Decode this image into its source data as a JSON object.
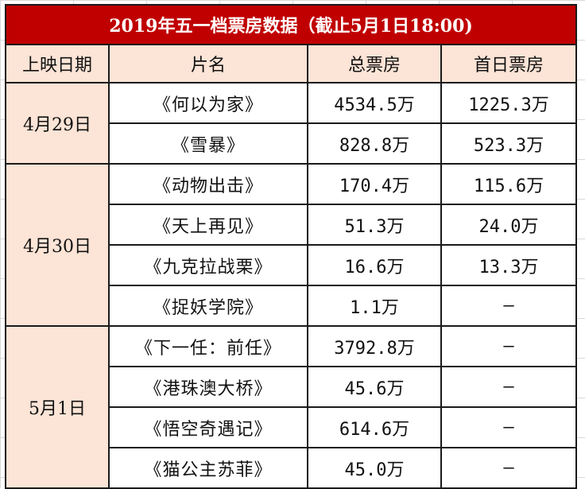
{
  "title": "2019年五一档票房数据（截止5月1日18:00)",
  "headers": {
    "date": "上映日期",
    "movie": "片名",
    "total": "总票房",
    "first_day": "首日票房"
  },
  "groups": [
    {
      "date": "4月29日",
      "rows": [
        {
          "movie": "《何以为家》",
          "total": "4534.5万",
          "first_day": "1225.3万"
        },
        {
          "movie": "《雪暴》",
          "total": "828.8万",
          "first_day": "523.3万"
        }
      ]
    },
    {
      "date": "4月30日",
      "rows": [
        {
          "movie": "《动物出击》",
          "total": "170.4万",
          "first_day": "115.6万"
        },
        {
          "movie": "《天上再见》",
          "total": "51.3万",
          "first_day": "24.0万"
        },
        {
          "movie": "《九克拉战栗》",
          "total": "16.6万",
          "first_day": "13.3万"
        },
        {
          "movie": "《捉妖学院》",
          "total": "1.1万",
          "first_day": "—"
        }
      ]
    },
    {
      "date": "5月1日",
      "rows": [
        {
          "movie": "《下一任：前任》",
          "total": "3792.8万",
          "first_day": "—"
        },
        {
          "movie": "《港珠澳大桥》",
          "total": "45.6万",
          "first_day": "—"
        },
        {
          "movie": "《悟空奇遇记》",
          "total": "614.6万",
          "first_day": "—"
        },
        {
          "movie": "《猫公主苏菲》",
          "total": "45.0万",
          "first_day": "—"
        }
      ]
    }
  ]
}
